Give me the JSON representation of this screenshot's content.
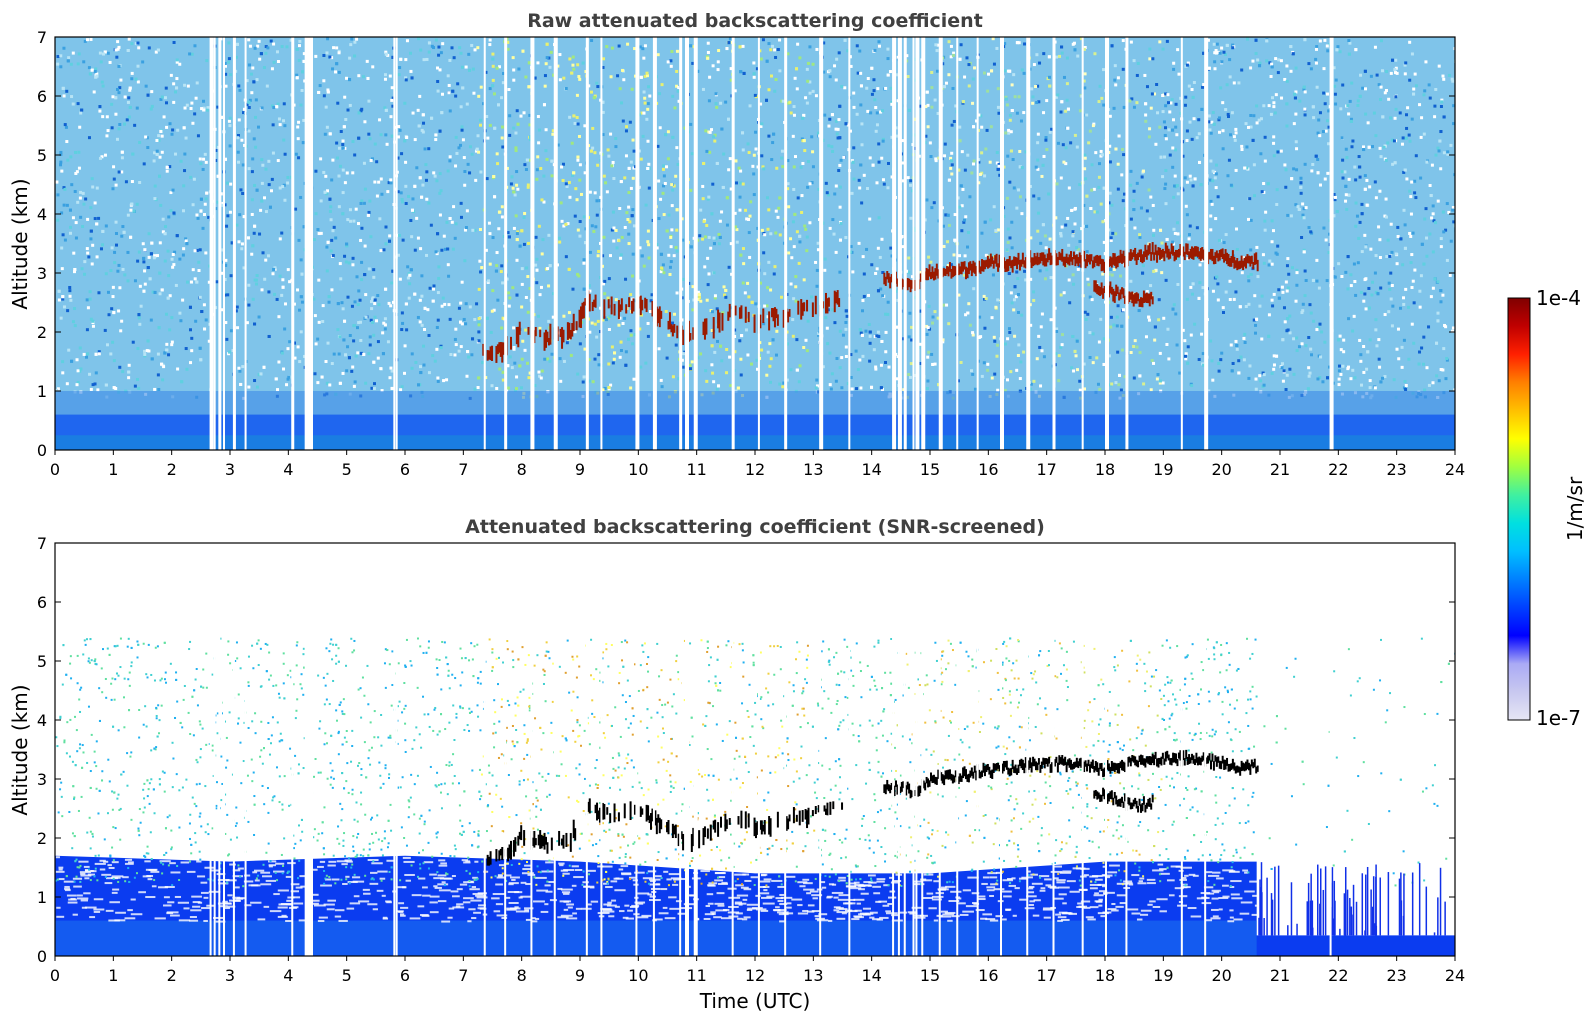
{
  "chart_data": [
    {
      "type": "heatmap",
      "title": "Raw attenuated backscattering coefficient",
      "xlabel": "",
      "ylabel": "Altitude (km)",
      "xlim": [
        0,
        24
      ],
      "ylim": [
        0,
        7
      ],
      "xticks": [
        "0",
        "1",
        "2",
        "3",
        "4",
        "5",
        "6",
        "7",
        "8",
        "9",
        "10",
        "11",
        "12",
        "13",
        "14",
        "15",
        "16",
        "17",
        "18",
        "19",
        "20",
        "21",
        "22",
        "23",
        "24"
      ],
      "yticks": [
        "0",
        "1",
        "2",
        "3",
        "4",
        "5",
        "6",
        "7"
      ],
      "screened": false,
      "no_data_times": [
        2.65,
        2.72,
        2.8,
        2.88,
        3.05,
        3.25,
        4.05,
        4.28,
        4.32,
        5.8,
        5.84,
        7.35,
        7.7,
        8.15,
        8.55,
        9.1,
        9.35,
        9.95,
        10.25,
        10.7,
        10.8,
        10.95,
        11.6,
        12.05,
        12.5,
        13.1,
        13.6,
        14.35,
        14.45,
        14.55,
        14.7,
        14.75,
        14.85,
        15.15,
        15.45,
        15.8,
        16.2,
        16.65,
        17.1,
        17.6,
        18.0,
        18.35,
        19.3,
        19.7,
        21.85
      ],
      "layer_top": [
        {
          "t": 7.3,
          "h": 1.65
        },
        {
          "t": 7.7,
          "h": 1.7
        },
        {
          "t": 8.0,
          "h": 2.05
        },
        {
          "t": 8.4,
          "h": 1.9
        },
        {
          "t": 8.8,
          "h": 1.95
        },
        {
          "t": 9.1,
          "h": 2.5
        },
        {
          "t": 9.5,
          "h": 2.4
        },
        {
          "t": 10.0,
          "h": 2.5
        },
        {
          "t": 10.4,
          "h": 2.2
        },
        {
          "t": 10.8,
          "h": 1.95
        },
        {
          "t": 11.2,
          "h": 2.1
        },
        {
          "t": 11.6,
          "h": 2.35
        },
        {
          "t": 12.0,
          "h": 2.2
        },
        {
          "t": 12.5,
          "h": 2.3
        },
        {
          "t": 13.0,
          "h": 2.4
        },
        {
          "t": 13.5,
          "h": 2.55
        }
      ],
      "layer_main": [
        {
          "t": 14.2,
          "h": 2.9
        },
        {
          "t": 14.7,
          "h": 2.8
        },
        {
          "t": 15.0,
          "h": 3.0
        },
        {
          "t": 15.5,
          "h": 3.05
        },
        {
          "t": 16.0,
          "h": 3.15
        },
        {
          "t": 16.5,
          "h": 3.2
        },
        {
          "t": 17.0,
          "h": 3.25
        },
        {
          "t": 17.5,
          "h": 3.25
        },
        {
          "t": 17.9,
          "h": 3.15
        },
        {
          "t": 18.3,
          "h": 3.25
        },
        {
          "t": 18.8,
          "h": 3.35
        },
        {
          "t": 19.3,
          "h": 3.35
        },
        {
          "t": 19.8,
          "h": 3.3
        },
        {
          "t": 20.3,
          "h": 3.2
        },
        {
          "t": 20.6,
          "h": 3.2
        }
      ],
      "layer_lower": [
        {
          "t": 17.8,
          "h": 2.75
        },
        {
          "t": 18.2,
          "h": 2.65
        },
        {
          "t": 18.6,
          "h": 2.55
        },
        {
          "t": 18.8,
          "h": 2.6
        }
      ]
    },
    {
      "type": "heatmap",
      "title": "Attenuated backscattering coefficient (SNR-screened)",
      "xlabel": "Time (UTC)",
      "ylabel": "Altitude (km)",
      "xlim": [
        0,
        24
      ],
      "ylim": [
        0,
        7
      ],
      "xticks": [
        "0",
        "1",
        "2",
        "3",
        "4",
        "5",
        "6",
        "7",
        "8",
        "9",
        "10",
        "11",
        "12",
        "13",
        "14",
        "15",
        "16",
        "17",
        "18",
        "19",
        "20",
        "21",
        "22",
        "23",
        "24"
      ],
      "yticks": [
        "0",
        "1",
        "2",
        "3",
        "4",
        "5",
        "6",
        "7"
      ],
      "screened": true,
      "boundary_layer_top": [
        {
          "t": 0,
          "h": 1.7
        },
        {
          "t": 3,
          "h": 1.6
        },
        {
          "t": 6,
          "h": 1.7
        },
        {
          "t": 9,
          "h": 1.6
        },
        {
          "t": 12,
          "h": 1.4
        },
        {
          "t": 15,
          "h": 1.4
        },
        {
          "t": 18,
          "h": 1.6
        },
        {
          "t": 20.6,
          "h": 1.6
        },
        {
          "t": 20.6,
          "h": 0.35
        },
        {
          "t": 24,
          "h": 0.35
        }
      ]
    }
  ],
  "colorbar": {
    "label": "1/m/sr",
    "max_label": "1e-4",
    "min_label": "1e-7",
    "scale": "log",
    "range": [
      1e-07,
      0.0001
    ],
    "colormap": [
      "#e6e6f5",
      "#c8c8f0",
      "#aaaaf5",
      "#0000ff",
      "#0040ff",
      "#0080ff",
      "#00bfff",
      "#00e0e0",
      "#40f0a0",
      "#a0ff40",
      "#ffff00",
      "#ffc000",
      "#ff8000",
      "#ff2000",
      "#c00000",
      "#800000"
    ],
    "layer_color": "#9b1a00",
    "screened_layer_color": "#000000"
  }
}
